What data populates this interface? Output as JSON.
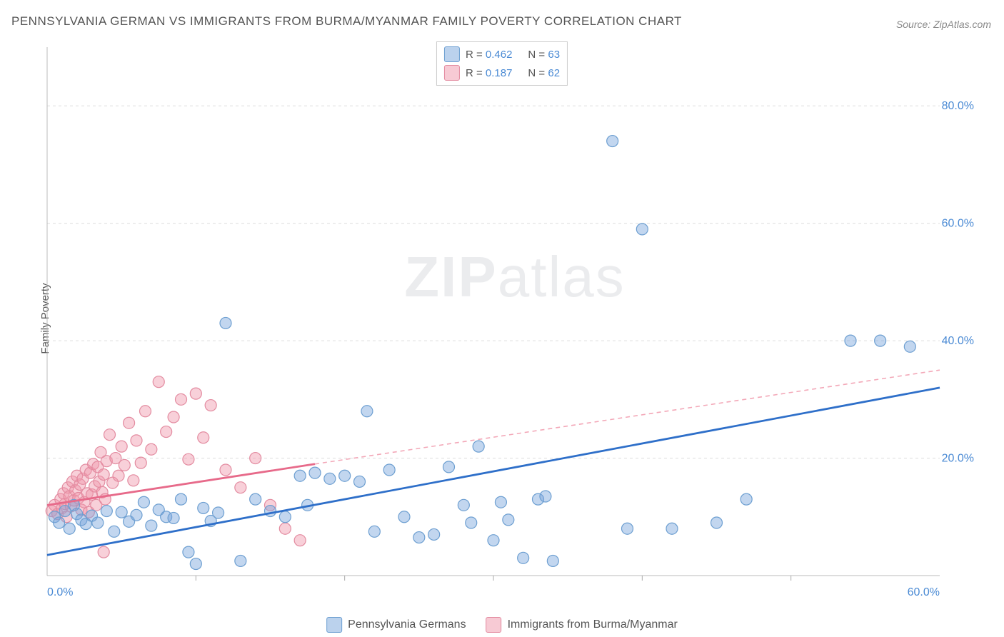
{
  "title": "PENNSYLVANIA GERMAN VS IMMIGRANTS FROM BURMA/MYANMAR FAMILY POVERTY CORRELATION CHART",
  "source": "Source: ZipAtlas.com",
  "ylabel": "Family Poverty",
  "watermark_bold": "ZIP",
  "watermark_light": "atlas",
  "chart": {
    "type": "scatter",
    "xlim": [
      0,
      60
    ],
    "ylim": [
      0,
      90
    ],
    "x_ticks": [
      0,
      60
    ],
    "x_tick_labels": [
      "0.0%",
      "60.0%"
    ],
    "x_minor_ticks": [
      10,
      20,
      30,
      40,
      50
    ],
    "y_ticks": [
      20,
      40,
      60,
      80
    ],
    "y_tick_labels": [
      "20.0%",
      "40.0%",
      "60.0%",
      "80.0%"
    ],
    "background_color": "#ffffff",
    "grid_color": "#dddddd",
    "axis_color": "#bbbbbb",
    "tick_color": "#aaaaaa",
    "series": [
      {
        "name": "Pennsylvania Germans",
        "color_fill": "rgba(120,165,220,0.45)",
        "color_stroke": "#6d9fd1",
        "trend_color": "#2e6fc9",
        "trend_dash_color": "#2e6fc9",
        "marker_radius": 8,
        "R": "0.462",
        "N": "63",
        "trend": {
          "x_start": 0,
          "y_start": 3.5,
          "x_solid_end": 60,
          "y_solid_end": 32,
          "x_dash_end": 60,
          "y_dash_end": 32
        },
        "points": [
          [
            0.5,
            10
          ],
          [
            0.8,
            9
          ],
          [
            1.2,
            11
          ],
          [
            1.5,
            8
          ],
          [
            1.8,
            12
          ],
          [
            2,
            10.5
          ],
          [
            2.3,
            9.5
          ],
          [
            2.6,
            8.8
          ],
          [
            3,
            10.2
          ],
          [
            3.4,
            9
          ],
          [
            4,
            11
          ],
          [
            4.5,
            7.5
          ],
          [
            5,
            10.8
          ],
          [
            5.5,
            9.2
          ],
          [
            6,
            10.3
          ],
          [
            6.5,
            12.5
          ],
          [
            7,
            8.5
          ],
          [
            7.5,
            11.2
          ],
          [
            8,
            10
          ],
          [
            8.5,
            9.8
          ],
          [
            9,
            13
          ],
          [
            9.5,
            4
          ],
          [
            10,
            2
          ],
          [
            10.5,
            11.5
          ],
          [
            11,
            9.3
          ],
          [
            11.5,
            10.7
          ],
          [
            12,
            43
          ],
          [
            13,
            2.5
          ],
          [
            14,
            13
          ],
          [
            15,
            11
          ],
          [
            16,
            10
          ],
          [
            17,
            17
          ],
          [
            17.5,
            12
          ],
          [
            18,
            17.5
          ],
          [
            19,
            16.5
          ],
          [
            20,
            17
          ],
          [
            21,
            16
          ],
          [
            21.5,
            28
          ],
          [
            22,
            7.5
          ],
          [
            23,
            18
          ],
          [
            24,
            10
          ],
          [
            25,
            6.5
          ],
          [
            26,
            7
          ],
          [
            27,
            18.5
          ],
          [
            28,
            12
          ],
          [
            28.5,
            9
          ],
          [
            29,
            22
          ],
          [
            30,
            6
          ],
          [
            30.5,
            12.5
          ],
          [
            31,
            9.5
          ],
          [
            32,
            3
          ],
          [
            33,
            13
          ],
          [
            33.5,
            13.5
          ],
          [
            34,
            2.5
          ],
          [
            38,
            74
          ],
          [
            39,
            8
          ],
          [
            40,
            59
          ],
          [
            42,
            8
          ],
          [
            45,
            9
          ],
          [
            54,
            40
          ],
          [
            56,
            40
          ],
          [
            58,
            39
          ],
          [
            47,
            13
          ]
        ]
      },
      {
        "name": "Immigrants from Burma/Myanmar",
        "color_fill": "rgba(240,150,170,0.45)",
        "color_stroke": "#e38ba0",
        "trend_color": "#e76a8a",
        "trend_dash_color": "#f3a8b8",
        "marker_radius": 8,
        "R": "0.187",
        "N": "62",
        "trend": {
          "x_start": 0,
          "y_start": 12,
          "x_solid_end": 18,
          "y_solid_end": 19,
          "x_dash_end": 60,
          "y_dash_end": 35
        },
        "points": [
          [
            0.3,
            11
          ],
          [
            0.5,
            12
          ],
          [
            0.7,
            10.5
          ],
          [
            0.9,
            13
          ],
          [
            1.0,
            11.5
          ],
          [
            1.1,
            14
          ],
          [
            1.2,
            12.2
          ],
          [
            1.3,
            10
          ],
          [
            1.4,
            15
          ],
          [
            1.5,
            13.5
          ],
          [
            1.6,
            11.8
          ],
          [
            1.7,
            16
          ],
          [
            1.8,
            12.8
          ],
          [
            1.9,
            14.5
          ],
          [
            2.0,
            17
          ],
          [
            2.1,
            13.2
          ],
          [
            2.2,
            15.5
          ],
          [
            2.3,
            11.2
          ],
          [
            2.4,
            16.5
          ],
          [
            2.5,
            12.5
          ],
          [
            2.6,
            18
          ],
          [
            2.7,
            14
          ],
          [
            2.8,
            10.8
          ],
          [
            2.9,
            17.5
          ],
          [
            3.0,
            13.8
          ],
          [
            3.1,
            19
          ],
          [
            3.2,
            15.2
          ],
          [
            3.3,
            12
          ],
          [
            3.4,
            18.5
          ],
          [
            3.5,
            16
          ],
          [
            3.6,
            21
          ],
          [
            3.7,
            14.2
          ],
          [
            3.8,
            17.2
          ],
          [
            3.9,
            13
          ],
          [
            4.0,
            19.5
          ],
          [
            4.2,
            24
          ],
          [
            4.4,
            15.8
          ],
          [
            4.6,
            20
          ],
          [
            4.8,
            17
          ],
          [
            5.0,
            22
          ],
          [
            5.2,
            18.8
          ],
          [
            5.5,
            26
          ],
          [
            5.8,
            16.2
          ],
          [
            6.0,
            23
          ],
          [
            6.3,
            19.2
          ],
          [
            6.6,
            28
          ],
          [
            7.0,
            21.5
          ],
          [
            7.5,
            33
          ],
          [
            8.0,
            24.5
          ],
          [
            8.5,
            27
          ],
          [
            9.0,
            30
          ],
          [
            9.5,
            19.8
          ],
          [
            10,
            31
          ],
          [
            10.5,
            23.5
          ],
          [
            11,
            29
          ],
          [
            12,
            18
          ],
          [
            13,
            15
          ],
          [
            14,
            20
          ],
          [
            15,
            12
          ],
          [
            16,
            8
          ],
          [
            17,
            6
          ],
          [
            3.8,
            4
          ]
        ]
      }
    ]
  },
  "legend_top": [
    {
      "swatch_fill": "rgba(120,165,220,0.5)",
      "swatch_stroke": "#6d9fd1",
      "r_label": "R =",
      "r_value": "0.462",
      "n_label": "N =",
      "n_value": "63"
    },
    {
      "swatch_fill": "rgba(240,150,170,0.5)",
      "swatch_stroke": "#e38ba0",
      "r_label": "R =",
      "r_value": " 0.187",
      "n_label": "N =",
      "n_value": "62"
    }
  ],
  "legend_bottom": [
    {
      "swatch_fill": "rgba(120,165,220,0.5)",
      "swatch_stroke": "#6d9fd1",
      "label": "Pennsylvania Germans"
    },
    {
      "swatch_fill": "rgba(240,150,170,0.5)",
      "swatch_stroke": "#e38ba0",
      "label": "Immigrants from Burma/Myanmar"
    }
  ]
}
